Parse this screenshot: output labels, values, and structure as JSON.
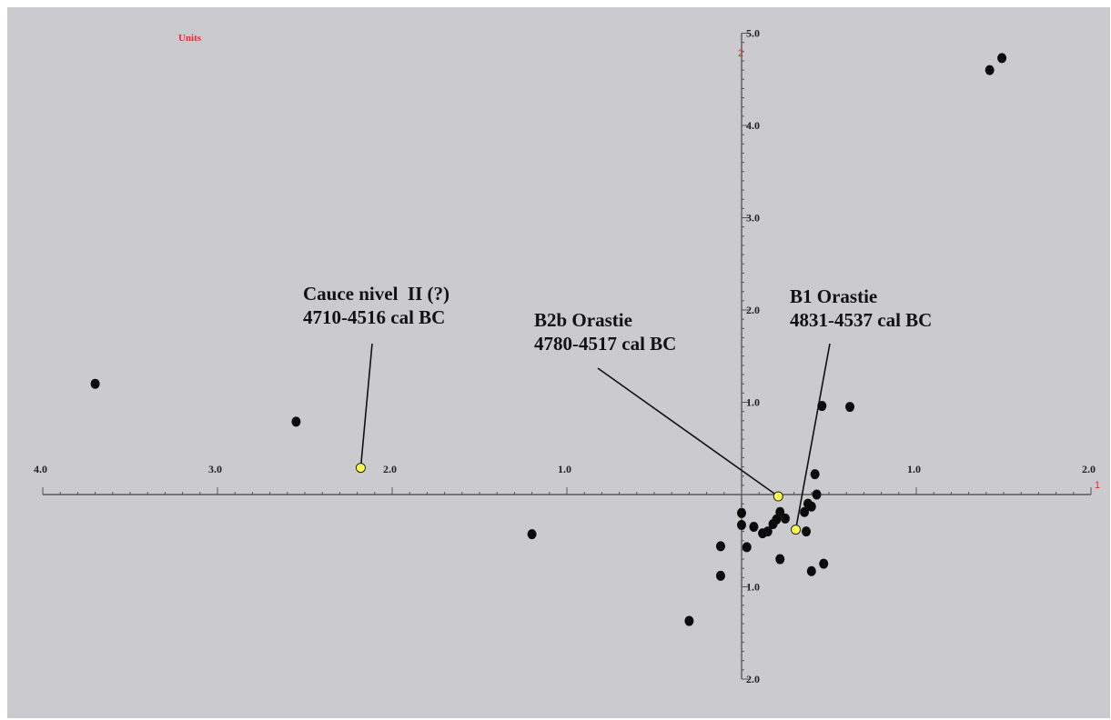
{
  "chart_data": {
    "type": "scatter",
    "units_label": "Units",
    "x_axis_name": "1",
    "y_axis_name": "2",
    "xlim": [
      -4.0,
      2.0
    ],
    "ylim": [
      -2.0,
      5.0
    ],
    "x_ticks": [
      {
        "value": -4.0,
        "label": "4.0"
      },
      {
        "value": -3.0,
        "label": "3.0"
      },
      {
        "value": -2.0,
        "label": "2.0"
      },
      {
        "value": -1.0,
        "label": "1.0"
      },
      {
        "value": 1.0,
        "label": "1.0"
      },
      {
        "value": 2.0,
        "label": "2.0"
      }
    ],
    "y_ticks": [
      {
        "value": 5.0,
        "label": "5.0"
      },
      {
        "value": 4.0,
        "label": "4.0"
      },
      {
        "value": 3.0,
        "label": "3.0"
      },
      {
        "value": 2.0,
        "label": "2.0"
      },
      {
        "value": 1.0,
        "label": "1.0"
      },
      {
        "value": -1.0,
        "label": "1.0"
      },
      {
        "value": -2.0,
        "label": "2.0"
      }
    ],
    "points": [
      {
        "x": -3.7,
        "y": 1.2
      },
      {
        "x": -2.55,
        "y": 0.79
      },
      {
        "x": -1.2,
        "y": -0.43
      },
      {
        "x": -0.3,
        "y": -1.37
      },
      {
        "x": -0.12,
        "y": -0.56
      },
      {
        "x": -0.12,
        "y": -0.88
      },
      {
        "x": 0.0,
        "y": -0.2
      },
      {
        "x": 0.0,
        "y": -0.33
      },
      {
        "x": 0.03,
        "y": -0.57
      },
      {
        "x": 0.07,
        "y": -0.35
      },
      {
        "x": 0.12,
        "y": -0.42
      },
      {
        "x": 0.15,
        "y": -0.4
      },
      {
        "x": 0.18,
        "y": -0.32
      },
      {
        "x": 0.2,
        "y": -0.27
      },
      {
        "x": 0.22,
        "y": -0.19
      },
      {
        "x": 0.25,
        "y": -0.26
      },
      {
        "x": 0.22,
        "y": -0.7
      },
      {
        "x": 0.36,
        "y": -0.19
      },
      {
        "x": 0.38,
        "y": -0.1
      },
      {
        "x": 0.4,
        "y": -0.13
      },
      {
        "x": 0.42,
        "y": 0.22
      },
      {
        "x": 0.43,
        "y": 0.0
      },
      {
        "x": 0.37,
        "y": -0.4
      },
      {
        "x": 0.4,
        "y": -0.83
      },
      {
        "x": 0.47,
        "y": -0.75
      },
      {
        "x": 0.46,
        "y": 0.96
      },
      {
        "x": 0.62,
        "y": 0.95
      },
      {
        "x": 1.42,
        "y": 4.6
      },
      {
        "x": 1.49,
        "y": 4.73
      }
    ],
    "highlighted_points": [
      {
        "x": -2.18,
        "y": 0.29,
        "lines": [
          "Cauce nivel  II (?)",
          "4710-4516 cal BC"
        ]
      },
      {
        "x": 0.21,
        "y": -0.02,
        "lines": [
          "B2b Orastie",
          "4780-4517 cal BC"
        ]
      },
      {
        "x": 0.31,
        "y": -0.38,
        "lines": [
          "B1 Orastie",
          "4831-4537 cal BC"
        ]
      }
    ],
    "colors": {
      "background": "#cbcbcf",
      "point": "#0b0b0b",
      "highlight": "#ffff4d",
      "axis_label": "#e03030"
    }
  }
}
